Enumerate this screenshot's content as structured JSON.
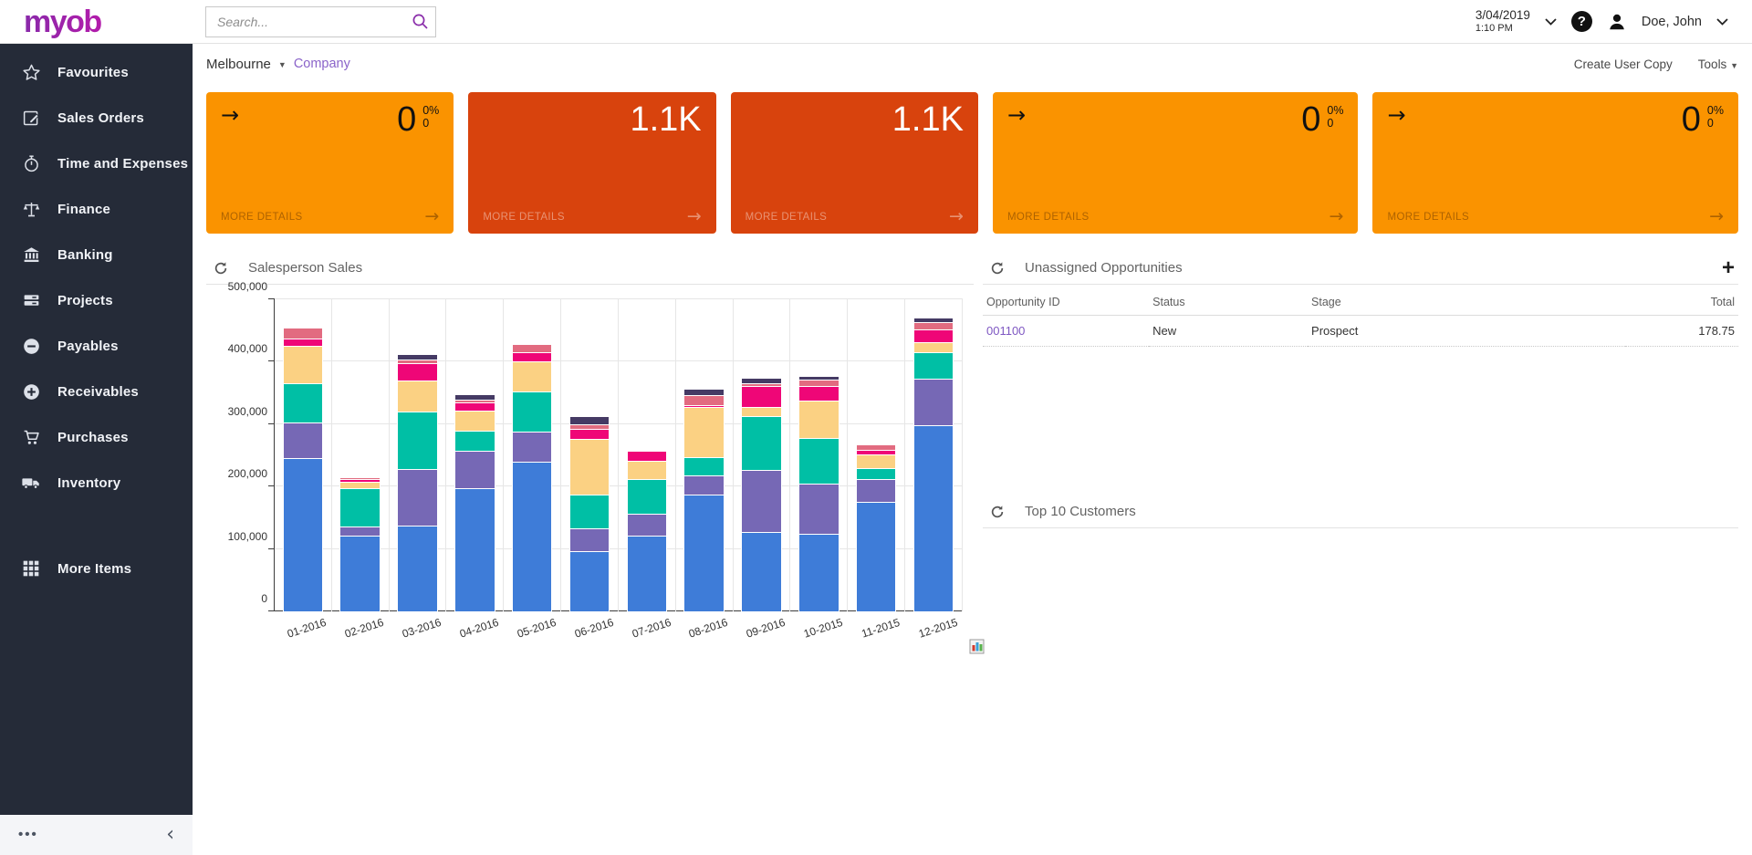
{
  "topbar": {
    "logo": "myob",
    "search_placeholder": "Search...",
    "date": "3/04/2019",
    "time": "1:10 PM",
    "user": "Doe, John"
  },
  "sidebar": {
    "items": [
      {
        "label": "Favourites",
        "icon": "star"
      },
      {
        "label": "Sales Orders",
        "icon": "edit"
      },
      {
        "label": "Time and Expenses",
        "icon": "stopwatch"
      },
      {
        "label": "Finance",
        "icon": "scales"
      },
      {
        "label": "Banking",
        "icon": "bank"
      },
      {
        "label": "Projects",
        "icon": "stack"
      },
      {
        "label": "Payables",
        "icon": "minus-circle"
      },
      {
        "label": "Receivables",
        "icon": "plus-circle"
      },
      {
        "label": "Purchases",
        "icon": "cart"
      },
      {
        "label": "Inventory",
        "icon": "truck"
      },
      {
        "label": "More Items",
        "icon": "grid"
      }
    ]
  },
  "breadcrumb": {
    "location": "Melbourne",
    "section": "Company"
  },
  "page_actions": {
    "create_user_copy": "Create User Copy",
    "tools": "Tools"
  },
  "kpi_cards": [
    {
      "color": "orange",
      "value": "0",
      "pct": "0%",
      "sub": "0",
      "more_label": "MORE DETAILS"
    },
    {
      "color": "red",
      "value": "1.1K",
      "more_label": "MORE DETAILS"
    },
    {
      "color": "red",
      "value": "1.1K",
      "more_label": "MORE DETAILS"
    },
    {
      "color": "orange",
      "value": "0",
      "pct": "0%",
      "sub": "0",
      "more_label": "MORE DETAILS"
    },
    {
      "color": "orange",
      "value": "0",
      "pct": "0%",
      "sub": "0",
      "more_label": "MORE DETAILS"
    }
  ],
  "panels": {
    "salesperson": {
      "title": "Salesperson Sales"
    },
    "opportunities": {
      "title": "Unassigned Opportunities",
      "columns": [
        "Opportunity ID",
        "Status",
        "Stage",
        "Total"
      ],
      "rows": [
        {
          "id": "001100",
          "status": "New",
          "stage": "Prospect",
          "total": "178.75"
        }
      ]
    },
    "top_customers": {
      "title": "Top 10 Customers"
    }
  },
  "chart_data": {
    "type": "bar",
    "stacked": true,
    "title": "Salesperson Sales",
    "categories": [
      "01-2016",
      "02-2016",
      "03-2016",
      "04-2016",
      "05-2016",
      "06-2016",
      "07-2016",
      "08-2016",
      "09-2016",
      "10-2015",
      "11-2015",
      "12-2015"
    ],
    "series": [
      {
        "name": "series-blue",
        "color": "#3E7CD8",
        "values": [
          245000,
          122000,
          137000,
          197000,
          240000,
          97000,
          122000,
          187000,
          127000,
          124000,
          176000,
          298000
        ]
      },
      {
        "name": "series-purple",
        "color": "#7668B5",
        "values": [
          58000,
          14000,
          91000,
          60000,
          48000,
          36000,
          35000,
          31000,
          100000,
          81000,
          36000,
          75000
        ]
      },
      {
        "name": "series-teal",
        "color": "#00BFA5",
        "values": [
          62000,
          61000,
          92000,
          33000,
          64000,
          54000,
          55000,
          29000,
          86000,
          73000,
          18000,
          42000
        ]
      },
      {
        "name": "series-amber",
        "color": "#FBD183",
        "values": [
          60000,
          10000,
          50000,
          32000,
          48000,
          90000,
          30000,
          80000,
          14000,
          60000,
          22000,
          16000
        ]
      },
      {
        "name": "series-magenta",
        "color": "#EF0677",
        "values": [
          12000,
          5000,
          28000,
          13000,
          15000,
          15000,
          15000,
          3000,
          34000,
          23000,
          7000,
          21000
        ]
      },
      {
        "name": "series-salmon",
        "color": "#E26B80",
        "values": [
          18000,
          3000,
          6000,
          5000,
          13000,
          8000,
          0,
          17000,
          5000,
          10000,
          8000,
          12000
        ]
      },
      {
        "name": "series-navy",
        "color": "#453A64",
        "values": [
          0,
          0,
          8000,
          8000,
          0,
          13000,
          0,
          10000,
          9000,
          7000,
          0,
          7000
        ]
      }
    ],
    "ylim": [
      0,
      500000
    ],
    "ytick_labels": [
      "0",
      "100,000",
      "200,000",
      "300,000",
      "400,000",
      "500,000"
    ],
    "xlabel": "",
    "ylabel": "",
    "legend": "none",
    "grid": true
  }
}
